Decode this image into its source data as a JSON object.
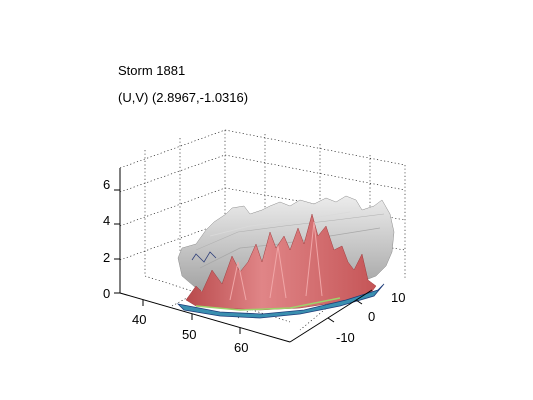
{
  "chart_data": {
    "type": "3d-surface",
    "title": "Storm 1881",
    "subtitle": "(U,V) (2.8967,-1.0316)",
    "xlabel": "",
    "ylabel": "",
    "zlabel": "",
    "xlim": [
      35,
      68
    ],
    "ylim": [
      -15,
      15
    ],
    "zlim": [
      0,
      7
    ],
    "x_ticks": [
      "40",
      "50",
      "60"
    ],
    "y_ticks": [
      "10",
      "0",
      "-10"
    ],
    "z_ticks": [
      "6",
      "4",
      "2",
      "0"
    ],
    "grid": true,
    "surfaces": [
      {
        "description": "outer isosurface",
        "color": "#c8c8c8"
      },
      {
        "description": "inner isosurface",
        "color": "#d9696a"
      },
      {
        "description": "base contour",
        "color": "#3a8fb0"
      }
    ]
  }
}
